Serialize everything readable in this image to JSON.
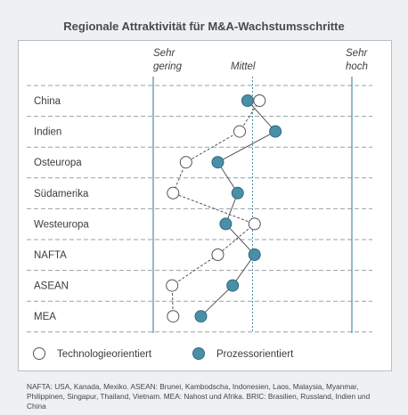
{
  "title": "Regionale Attraktivität für M&A-Wachstumsschritte",
  "columns": {
    "low_line1": "Sehr",
    "low_line2": "gering",
    "mid": "Mittel",
    "high_line1": "Sehr",
    "high_line2": "hoch"
  },
  "legend": {
    "tech": "Technologieorientiert",
    "proc": "Prozessorientiert"
  },
  "footnote": "NAFTA: USA, Kanada, Mexiko. ASEAN: Brunei, Kambodscha, Indonesien, Laos, Malaysia, Myanmar, Philippinen, Singapur, Thailand, Vietnam. MEA: Nahost und Afrika. BRIC: Brasilien, Russland, Indien und China",
  "colors": {
    "accent": "#4a8fa8",
    "grid": "#9aa0a6",
    "connector": "#555555"
  },
  "chart_data": {
    "type": "scatter",
    "title": "Regionale Attraktivität für M&A-Wachstumsschritte",
    "categories": [
      "China",
      "Indien",
      "Osteuropa",
      "Südamerika",
      "Westeuropa",
      "NAFTA",
      "ASEAN",
      "MEA"
    ],
    "scale": {
      "min": 0,
      "max": 2,
      "tick_labels": [
        "Sehr gering",
        "Mittel",
        "Sehr hoch"
      ]
    },
    "series": [
      {
        "name": "Technologieorientiert",
        "marker": "open-circle",
        "line": "dashed",
        "values": [
          1.07,
          0.87,
          0.33,
          0.2,
          1.02,
          0.65,
          0.19,
          0.2
        ]
      },
      {
        "name": "Prozessorientiert",
        "marker": "filled-circle",
        "line": "solid",
        "values": [
          0.95,
          1.23,
          0.65,
          0.85,
          0.73,
          1.02,
          0.8,
          0.48
        ]
      }
    ]
  }
}
